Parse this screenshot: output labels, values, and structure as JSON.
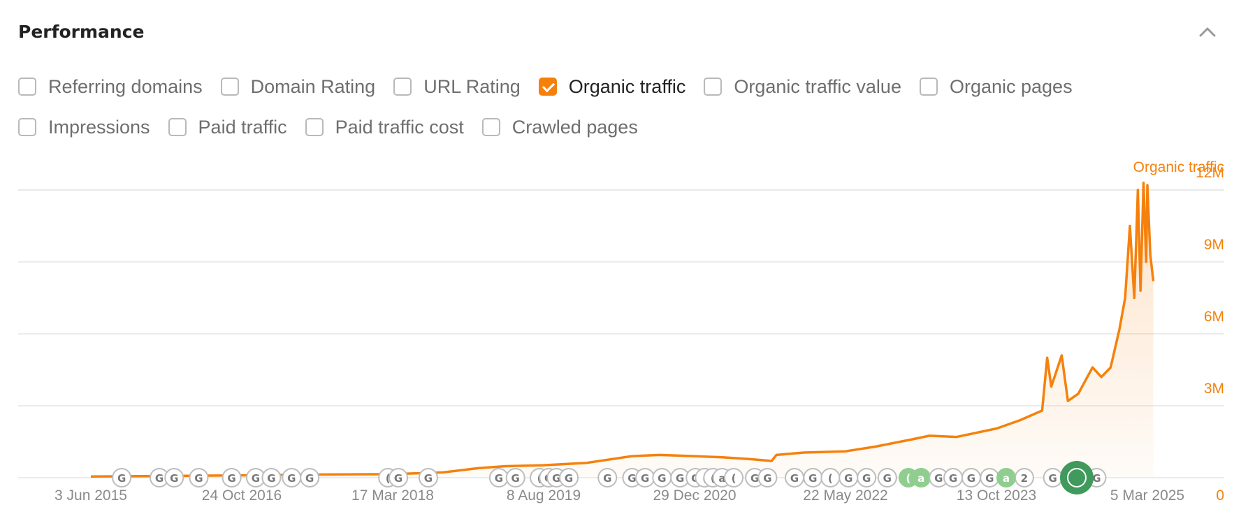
{
  "panel": {
    "title": "Performance",
    "collapse_icon": "chevron-up-icon"
  },
  "filters": [
    {
      "label": "Referring domains",
      "checked": false
    },
    {
      "label": "Domain Rating",
      "checked": false
    },
    {
      "label": "URL Rating",
      "checked": false
    },
    {
      "label": "Organic traffic",
      "checked": true
    },
    {
      "label": "Organic traffic value",
      "checked": false
    },
    {
      "label": "Organic pages",
      "checked": false
    },
    {
      "label": "Impressions",
      "checked": false
    },
    {
      "label": "Paid traffic",
      "checked": false
    },
    {
      "label": "Paid traffic cost",
      "checked": false
    },
    {
      "label": "Crawled pages",
      "checked": false
    }
  ],
  "colors": {
    "accent": "#f5810c",
    "grid": "#e6e6e6",
    "marker_border": "#bdbdbd",
    "marker_green": "#8fce8f",
    "marker_green_dark": "#3f9a5c"
  },
  "chart_data": {
    "type": "area",
    "series": [
      {
        "name": "Organic traffic",
        "points": [
          [
            "2015-06-03",
            0.05
          ],
          [
            "2016-01-01",
            0.07
          ],
          [
            "2016-10-24",
            0.1
          ],
          [
            "2017-06-01",
            0.13
          ],
          [
            "2018-03-17",
            0.15
          ],
          [
            "2018-09-01",
            0.22
          ],
          [
            "2019-01-01",
            0.4
          ],
          [
            "2019-04-01",
            0.48
          ],
          [
            "2019-08-08",
            0.52
          ],
          [
            "2020-01-01",
            0.62
          ],
          [
            "2020-06-01",
            0.9
          ],
          [
            "2020-09-01",
            0.95
          ],
          [
            "2020-12-29",
            0.9
          ],
          [
            "2021-04-01",
            0.85
          ],
          [
            "2021-07-01",
            0.78
          ],
          [
            "2021-09-15",
            0.7
          ],
          [
            "2021-10-01",
            0.95
          ],
          [
            "2022-01-01",
            1.05
          ],
          [
            "2022-05-22",
            1.1
          ],
          [
            "2022-09-01",
            1.3
          ],
          [
            "2023-01-01",
            1.6
          ],
          [
            "2023-03-01",
            1.75
          ],
          [
            "2023-06-01",
            1.7
          ],
          [
            "2023-10-13",
            2.05
          ],
          [
            "2024-01-01",
            2.4
          ],
          [
            "2024-03-15",
            2.8
          ],
          [
            "2024-04-01",
            5.0
          ],
          [
            "2024-04-15",
            3.8
          ],
          [
            "2024-05-20",
            5.1
          ],
          [
            "2024-06-10",
            3.2
          ],
          [
            "2024-07-15",
            3.5
          ],
          [
            "2024-09-01",
            4.6
          ],
          [
            "2024-10-01",
            4.2
          ],
          [
            "2024-11-01",
            4.6
          ],
          [
            "2024-12-01",
            6.2
          ],
          [
            "2024-12-20",
            7.5
          ],
          [
            "2025-01-05",
            10.5
          ],
          [
            "2025-01-20",
            7.5
          ],
          [
            "2025-02-01",
            12.0
          ],
          [
            "2025-02-10",
            7.8
          ],
          [
            "2025-02-20",
            12.3
          ],
          [
            "2025-03-01",
            9.0
          ],
          [
            "2025-03-05",
            12.2
          ],
          [
            "2025-03-15",
            9.3
          ],
          [
            "2025-03-25",
            8.2
          ]
        ]
      }
    ],
    "x_ticks": [
      "3 Jun 2015",
      "24 Oct 2016",
      "17 Mar 2018",
      "8 Aug 2019",
      "29 Dec 2020",
      "22 May 2022",
      "13 Oct 2023",
      "5 Mar 2025"
    ],
    "x_range": [
      "2015-06-03",
      "2025-03-25"
    ],
    "y_ticks": [
      "0",
      "3M",
      "6M",
      "9M",
      "12M"
    ],
    "y_tick_values": [
      0,
      3,
      6,
      9,
      12
    ],
    "ylim": [
      0,
      12
    ],
    "y_unit": "M",
    "ylabel": "Organic traffic",
    "grid": true,
    "annotation_markers": [
      {
        "date": "2015-09-15",
        "label": "G"
      },
      {
        "date": "2016-01-20",
        "label": "G"
      },
      {
        "date": "2016-03-10",
        "label": "G"
      },
      {
        "date": "2016-06-01",
        "label": "G"
      },
      {
        "date": "2016-09-20",
        "label": "G"
      },
      {
        "date": "2016-12-10",
        "label": "G"
      },
      {
        "date": "2017-02-01",
        "label": "G"
      },
      {
        "date": "2017-04-10",
        "label": "G"
      },
      {
        "date": "2017-06-10",
        "label": "G"
      },
      {
        "date": "2018-03-01",
        "label": "("
      },
      {
        "date": "2018-04-05",
        "label": "G"
      },
      {
        "date": "2018-07-15",
        "label": "G"
      },
      {
        "date": "2019-03-10",
        "label": "G"
      },
      {
        "date": "2019-05-05",
        "label": "G"
      },
      {
        "date": "2019-07-25",
        "label": "("
      },
      {
        "date": "2019-08-25",
        "label": "G"
      },
      {
        "date": "2019-09-20",
        "label": "G"
      },
      {
        "date": "2019-11-01",
        "label": "G"
      },
      {
        "date": "2020-03-10",
        "label": "G"
      },
      {
        "date": "2020-06-01",
        "label": "G"
      },
      {
        "date": "2020-07-15",
        "label": "G"
      },
      {
        "date": "2020-09-10",
        "label": "G"
      },
      {
        "date": "2020-11-10",
        "label": "G"
      },
      {
        "date": "2021-01-01",
        "label": "G"
      },
      {
        "date": "2021-02-01",
        "label": "("
      },
      {
        "date": "2021-03-01",
        "label": "("
      },
      {
        "date": "2021-04-01",
        "label": "a"
      },
      {
        "date": "2021-05-10",
        "label": "("
      },
      {
        "date": "2021-07-20",
        "label": "G"
      },
      {
        "date": "2021-09-01",
        "label": "G"
      },
      {
        "date": "2021-12-01",
        "label": "G"
      },
      {
        "date": "2022-02-01",
        "label": "G"
      },
      {
        "date": "2022-04-01",
        "label": "("
      },
      {
        "date": "2022-06-01",
        "label": "G"
      },
      {
        "date": "2022-08-01",
        "label": "G"
      },
      {
        "date": "2022-10-10",
        "label": "G"
      },
      {
        "date": "2022-12-20",
        "label": "("
      },
      {
        "date": "2023-02-01",
        "label": "a"
      },
      {
        "date": "2023-04-01",
        "label": "G"
      },
      {
        "date": "2023-05-20",
        "label": "G"
      },
      {
        "date": "2023-07-20",
        "label": "G"
      },
      {
        "date": "2023-09-20",
        "label": "G"
      },
      {
        "date": "2023-11-15",
        "label": "a"
      },
      {
        "date": "2024-01-15",
        "label": "2"
      },
      {
        "date": "2024-04-20",
        "label": "G"
      },
      {
        "date": "2024-08-01",
        "label": "a"
      },
      {
        "date": "2024-09-15",
        "label": "G"
      }
    ]
  }
}
